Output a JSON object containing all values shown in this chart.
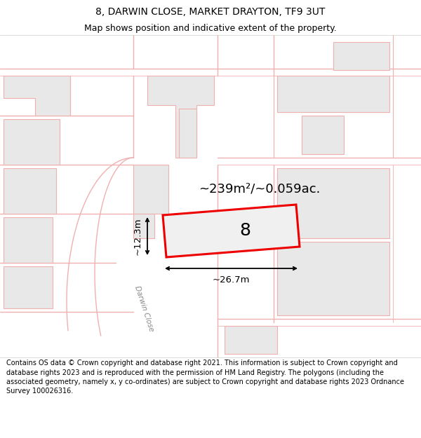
{
  "title": "8, DARWIN CLOSE, MARKET DRAYTON, TF9 3UT",
  "subtitle": "Map shows position and indicative extent of the property.",
  "footer": "Contains OS data © Crown copyright and database right 2021. This information is subject to Crown copyright and database rights 2023 and is reproduced with the permission of HM Land Registry. The polygons (including the associated geometry, namely x, y co-ordinates) are subject to Crown copyright and database rights 2023 Ordnance Survey 100026316.",
  "map_bg": "#ffffff",
  "building_fill": "#e8e8e8",
  "building_edge": "#f0b0b0",
  "road_color": "#f0b0b0",
  "highlight_fill": "#f0f0f0",
  "highlight_edge": "#ee0000",
  "highlight_lw": 2.2,
  "area_text": "~239m²/~0.059ac.",
  "label_text": "8",
  "dim_width": "~26.7m",
  "dim_height": "~12.3m",
  "darwin_close_label": "Darwin Close",
  "title_fontsize": 10,
  "subtitle_fontsize": 9,
  "footer_fontsize": 7
}
